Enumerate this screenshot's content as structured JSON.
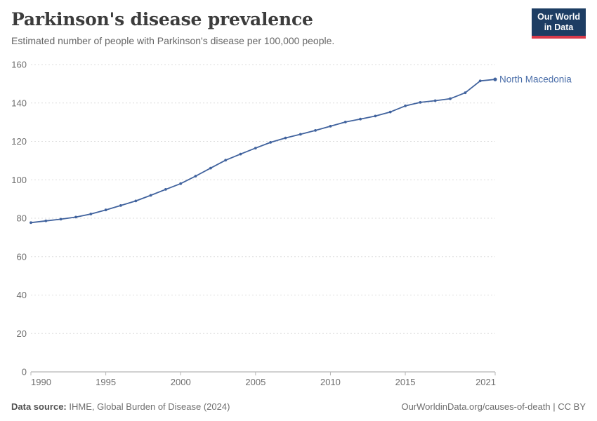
{
  "header": {
    "title": "Parkinson's disease prevalence",
    "subtitle": "Estimated number of people with Parkinson's disease per 100,000 people.",
    "logo": {
      "line1": "Our World",
      "line2": "in Data",
      "bg_color": "#1d3d63",
      "accent_color": "#d93a4a"
    }
  },
  "chart_data": {
    "type": "line",
    "title": "Parkinson's disease prevalence",
    "xlabel": "",
    "ylabel": "",
    "x": [
      1990,
      1991,
      1992,
      1993,
      1994,
      1995,
      1996,
      1997,
      1998,
      1999,
      2000,
      2001,
      2002,
      2003,
      2004,
      2005,
      2006,
      2007,
      2008,
      2009,
      2010,
      2011,
      2012,
      2013,
      2014,
      2015,
      2016,
      2017,
      2018,
      2019,
      2020,
      2021
    ],
    "series": [
      {
        "name": "North Macedonia",
        "color": "#41639e",
        "label_color": "#4a6ea9",
        "values": [
          77.7,
          78.6,
          79.5,
          80.6,
          82.2,
          84.3,
          86.6,
          89.0,
          91.9,
          95.0,
          98.0,
          101.9,
          106.1,
          110.2,
          113.4,
          116.5,
          119.5,
          121.8,
          123.7,
          125.7,
          127.9,
          130.1,
          131.6,
          133.2,
          135.3,
          138.5,
          140.3,
          141.2,
          142.2,
          145.3,
          151.5,
          152.3
        ]
      }
    ],
    "xlim": [
      1990,
      2021
    ],
    "ylim": [
      0,
      160
    ],
    "xticks": [
      1990,
      1995,
      2000,
      2005,
      2010,
      2015,
      2021
    ],
    "yticks": [
      0,
      20,
      40,
      60,
      80,
      100,
      120,
      140,
      160
    ],
    "grid": "horizontal-dashed",
    "legend": "end-of-line-label",
    "style": {
      "grid_color": "#dedede",
      "axis_color": "#a3a3a3",
      "tick_color": "#b5b5b5",
      "tick_label_color": "#6e6e6e"
    }
  },
  "footer": {
    "source_label": "Data source:",
    "source_text": "IHME, Global Burden of Disease (2024)",
    "right_text": "OurWorldinData.org/causes-of-death | CC BY"
  }
}
